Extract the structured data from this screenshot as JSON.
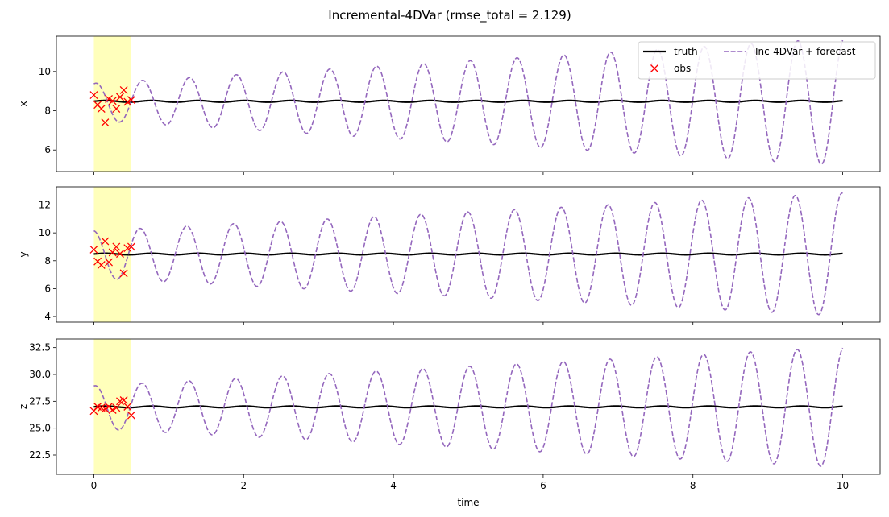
{
  "chart_data": {
    "type": "line",
    "title": "Incremental-4DVar (rmse_total = 2.129)",
    "xlabel": "time",
    "xlim": [
      -0.5,
      10.5
    ],
    "x_ticks": [
      0,
      2,
      4,
      6,
      8,
      10
    ],
    "shared_x": true,
    "assimilation_window": [
      0,
      0.5
    ],
    "window_color": "#ffffbb",
    "grid": false,
    "legend": {
      "placement": "top-right",
      "columns": 2,
      "entries": [
        {
          "label": "truth",
          "style": "solid-line",
          "color": "#000000"
        },
        {
          "label": "obs",
          "style": "x-marker",
          "color": "#ff0000"
        },
        {
          "label": "Inc-4DVar + forecast",
          "style": "dashed-line",
          "color": "#9467bd"
        }
      ]
    },
    "series_style": {
      "truth": {
        "color": "#000000",
        "dash": "solid"
      },
      "obs": {
        "color": "#ff0000",
        "marker": "x"
      },
      "forecast": {
        "color": "#9467bd",
        "dash": "dashed"
      }
    },
    "panels": [
      {
        "ylabel": "x",
        "ylim": [
          4.9,
          11.8
        ],
        "y_ticks": [
          6,
          8,
          10
        ],
        "y_tick_labels": [
          "6",
          "8",
          "10"
        ],
        "truth": {
          "mean": 8.48,
          "amp": 0.04,
          "period": 0.62
        },
        "forecast": {
          "mean": 8.45,
          "amp_start": 0.95,
          "amp_end": 3.25,
          "period": 0.625,
          "phase_deg": 75
        },
        "obs": {
          "t": [
            0.0,
            0.05,
            0.1,
            0.15,
            0.2,
            0.25,
            0.3,
            0.35,
            0.4,
            0.45,
            0.5
          ],
          "v": [
            8.8,
            8.3,
            8.1,
            7.4,
            8.6,
            8.5,
            8.1,
            8.7,
            9.05,
            8.45,
            8.55
          ]
        }
      },
      {
        "ylabel": "y",
        "ylim": [
          3.6,
          13.3
        ],
        "y_ticks": [
          4,
          6,
          8,
          10,
          12
        ],
        "y_tick_labels": [
          "4",
          "6",
          "8",
          "10",
          "12"
        ],
        "truth": {
          "mean": 8.48,
          "amp": 0.05,
          "period": 0.62
        },
        "forecast": {
          "mean": 8.45,
          "amp_start": 1.7,
          "amp_end": 4.4,
          "period": 0.625,
          "phase_deg": 95
        },
        "obs": {
          "t": [
            0.0,
            0.05,
            0.1,
            0.15,
            0.2,
            0.25,
            0.3,
            0.35,
            0.4,
            0.45,
            0.5
          ],
          "v": [
            8.8,
            7.95,
            7.7,
            9.4,
            7.9,
            8.6,
            9.0,
            8.5,
            7.1,
            8.9,
            9.0
          ]
        }
      },
      {
        "ylabel": "z",
        "ylim": [
          20.7,
          33.3
        ],
        "y_ticks": [
          22.5,
          25.0,
          27.5,
          30.0,
          32.5
        ],
        "y_tick_labels": [
          "22.5",
          "25.0",
          "27.5",
          "30.0",
          "32.5"
        ],
        "truth": {
          "mean": 26.98,
          "amp": 0.07,
          "period": 0.62
        },
        "forecast": {
          "mean": 26.95,
          "amp_start": 2.0,
          "amp_end": 5.6,
          "period": 0.625,
          "phase_deg": 80
        },
        "obs": {
          "t": [
            0.0,
            0.05,
            0.1,
            0.15,
            0.2,
            0.25,
            0.3,
            0.35,
            0.4,
            0.45,
            0.5
          ],
          "v": [
            26.6,
            27.0,
            26.9,
            26.8,
            27.0,
            26.7,
            26.9,
            27.5,
            27.6,
            27.0,
            26.2
          ]
        }
      }
    ]
  }
}
